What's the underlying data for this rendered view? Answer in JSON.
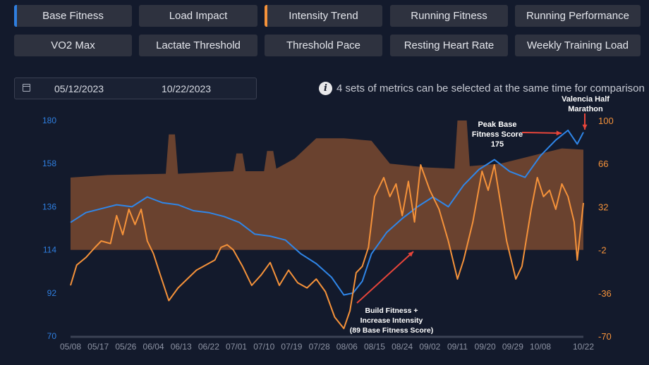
{
  "metric_buttons": [
    {
      "label": "Base Fitness",
      "selected": true,
      "color": "#2f7fe0"
    },
    {
      "label": "Load Impact",
      "selected": false
    },
    {
      "label": "Intensity Trend",
      "selected": true,
      "color": "#f5923a"
    },
    {
      "label": "Running Fitness",
      "selected": false
    },
    {
      "label": "Running Performance",
      "selected": false
    },
    {
      "label": "VO2 Max",
      "selected": false
    },
    {
      "label": "Lactate Threshold",
      "selected": false
    },
    {
      "label": "Threshold Pace",
      "selected": false
    },
    {
      "label": "Resting Heart Rate",
      "selected": false
    },
    {
      "label": "Weekly Training Load",
      "selected": false
    }
  ],
  "date_range": {
    "start": "05/12/2023",
    "end": "10/22/2023",
    "icon": "calendar-icon"
  },
  "info": {
    "icon": "info-icon",
    "text": "4 sets of metrics can be selected at the same time for comparison"
  },
  "chart_data": {
    "type": "line",
    "x_ticks": [
      "05/08",
      "05/17",
      "05/26",
      "06/04",
      "06/13",
      "06/22",
      "07/01",
      "07/10",
      "07/19",
      "07/28",
      "08/06",
      "08/15",
      "08/24",
      "09/02",
      "09/11",
      "09/20",
      "09/29",
      "10/08",
      "10/22"
    ],
    "x_range": [
      "05/08",
      "10/22"
    ],
    "y_left": {
      "ticks": [
        70,
        92,
        114,
        136,
        158,
        180
      ],
      "range": [
        70,
        180
      ],
      "color": "#2f7fe0"
    },
    "y_right": {
      "ticks": [
        -70,
        -36,
        -2,
        32,
        66,
        100
      ],
      "range": [
        -70,
        100
      ],
      "color": "#f5923a"
    },
    "grid": false,
    "series": [
      {
        "axis": "left",
        "type": "line",
        "color": "#2f86e8",
        "points": [
          [
            "05/08",
            128
          ],
          [
            "05/13",
            133
          ],
          [
            "05/18",
            135
          ],
          [
            "05/23",
            137
          ],
          [
            "05/28",
            136
          ],
          [
            "06/02",
            141
          ],
          [
            "06/07",
            138
          ],
          [
            "06/12",
            137
          ],
          [
            "06/17",
            134
          ],
          [
            "06/22",
            133
          ],
          [
            "06/27",
            131
          ],
          [
            "07/02",
            128
          ],
          [
            "07/07",
            122
          ],
          [
            "07/12",
            121
          ],
          [
            "07/17",
            119
          ],
          [
            "07/22",
            112
          ],
          [
            "07/27",
            107
          ],
          [
            "08/01",
            100
          ],
          [
            "08/05",
            91
          ],
          [
            "08/08",
            92
          ],
          [
            "08/11",
            98
          ],
          [
            "08/14",
            112
          ],
          [
            "08/19",
            123
          ],
          [
            "08/24",
            130
          ],
          [
            "08/29",
            136
          ],
          [
            "09/03",
            141
          ],
          [
            "09/08",
            136
          ],
          [
            "09/13",
            147
          ],
          [
            "09/18",
            155
          ],
          [
            "09/23",
            160
          ],
          [
            "09/28",
            154
          ],
          [
            "10/03",
            151
          ],
          [
            "10/08",
            162
          ],
          [
            "10/13",
            170
          ],
          [
            "10/17",
            175
          ],
          [
            "10/20",
            168
          ],
          [
            "10/22",
            174
          ]
        ]
      },
      {
        "axis": "right",
        "type": "line",
        "color": "#f5923a",
        "points": [
          [
            "05/08",
            -30
          ],
          [
            "05/10",
            -14
          ],
          [
            "05/13",
            -8
          ],
          [
            "05/16",
            0
          ],
          [
            "05/18",
            5
          ],
          [
            "05/21",
            3
          ],
          [
            "05/23",
            25
          ],
          [
            "05/25",
            10
          ],
          [
            "05/27",
            30
          ],
          [
            "05/29",
            18
          ],
          [
            "05/31",
            30
          ],
          [
            "06/02",
            5
          ],
          [
            "06/04",
            -5
          ],
          [
            "06/06",
            -20
          ],
          [
            "06/09",
            -42
          ],
          [
            "06/12",
            -32
          ],
          [
            "06/15",
            -25
          ],
          [
            "06/18",
            -18
          ],
          [
            "06/21",
            -14
          ],
          [
            "06/24",
            -10
          ],
          [
            "06/26",
            0
          ],
          [
            "06/28",
            2
          ],
          [
            "06/30",
            -2
          ],
          [
            "07/03",
            -15
          ],
          [
            "07/06",
            -30
          ],
          [
            "07/09",
            -22
          ],
          [
            "07/12",
            -12
          ],
          [
            "07/15",
            -30
          ],
          [
            "07/18",
            -18
          ],
          [
            "07/21",
            -28
          ],
          [
            "07/24",
            -32
          ],
          [
            "07/27",
            -25
          ],
          [
            "07/30",
            -35
          ],
          [
            "08/02",
            -55
          ],
          [
            "08/05",
            -64
          ],
          [
            "08/07",
            -50
          ],
          [
            "08/09",
            -20
          ],
          [
            "08/11",
            -15
          ],
          [
            "08/13",
            0
          ],
          [
            "08/15",
            40
          ],
          [
            "08/18",
            55
          ],
          [
            "08/20",
            40
          ],
          [
            "08/22",
            50
          ],
          [
            "08/24",
            25
          ],
          [
            "08/26",
            52
          ],
          [
            "08/28",
            20
          ],
          [
            "08/30",
            65
          ],
          [
            "09/02",
            45
          ],
          [
            "09/05",
            30
          ],
          [
            "09/08",
            5
          ],
          [
            "09/11",
            -25
          ],
          [
            "09/13",
            -10
          ],
          [
            "09/16",
            20
          ],
          [
            "09/19",
            60
          ],
          [
            "09/21",
            45
          ],
          [
            "09/23",
            65
          ],
          [
            "09/25",
            35
          ],
          [
            "09/27",
            5
          ],
          [
            "09/30",
            -25
          ],
          [
            "10/02",
            -15
          ],
          [
            "10/05",
            30
          ],
          [
            "10/07",
            55
          ],
          [
            "10/09",
            40
          ],
          [
            "10/11",
            45
          ],
          [
            "10/13",
            30
          ],
          [
            "10/15",
            50
          ],
          [
            "10/17",
            40
          ],
          [
            "10/19",
            20
          ],
          [
            "10/20",
            -10
          ],
          [
            "10/22",
            35
          ]
        ]
      },
      {
        "axis": "right",
        "type": "area",
        "baseline": -2,
        "color": "#7a4a30",
        "points": [
          [
            "05/08",
            55
          ],
          [
            "05/20",
            57
          ],
          [
            "06/08",
            58
          ],
          [
            "06/09",
            89
          ],
          [
            "06/11",
            89
          ],
          [
            "06/12",
            58
          ],
          [
            "06/30",
            60
          ],
          [
            "07/01",
            74
          ],
          [
            "07/03",
            74
          ],
          [
            "07/04",
            60
          ],
          [
            "07/10",
            60
          ],
          [
            "07/11",
            76
          ],
          [
            "07/13",
            76
          ],
          [
            "07/14",
            62
          ],
          [
            "07/20",
            70
          ],
          [
            "07/27",
            86
          ],
          [
            "08/05",
            86
          ],
          [
            "08/14",
            84
          ],
          [
            "08/20",
            66
          ],
          [
            "09/01",
            63
          ],
          [
            "09/10",
            62
          ],
          [
            "09/11",
            100
          ],
          [
            "09/14",
            100
          ],
          [
            "09/15",
            64
          ],
          [
            "09/25",
            66
          ],
          [
            "10/05",
            72
          ],
          [
            "10/15",
            78
          ],
          [
            "10/22",
            77
          ]
        ]
      }
    ],
    "annotations": [
      {
        "text": "Peak Base Fitness Score 175",
        "lines": [
          "Peak Base",
          "Fitness Score",
          "175"
        ]
      },
      {
        "text": "Valencia Half Marathon",
        "lines": [
          "Valencia Half",
          "Marathon"
        ]
      },
      {
        "text": "Build Fitness + Increase Intensity (89 Base Fitness Score)",
        "lines": [
          "Build Fitness +",
          "Increase Intensity",
          "(89 Base Fitness Score)"
        ]
      }
    ]
  }
}
